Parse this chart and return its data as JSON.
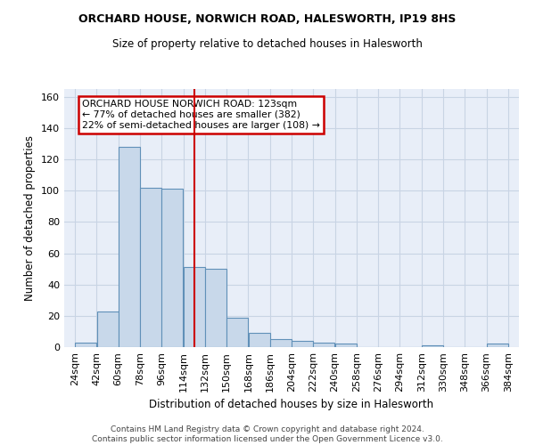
{
  "title1": "ORCHARD HOUSE, NORWICH ROAD, HALESWORTH, IP19 8HS",
  "title2": "Size of property relative to detached houses in Halesworth",
  "xlabel": "Distribution of detached houses by size in Halesworth",
  "ylabel": "Number of detached properties",
  "bin_edges": [
    24,
    42,
    60,
    78,
    96,
    114,
    132,
    150,
    168,
    186,
    204,
    222,
    240,
    258,
    276,
    294,
    312,
    330,
    348,
    366,
    384
  ],
  "bar_heights": [
    3,
    23,
    128,
    102,
    101,
    51,
    50,
    19,
    9,
    5,
    4,
    3,
    2,
    0,
    0,
    0,
    1,
    0,
    0,
    2
  ],
  "bar_color": "#c8d8ea",
  "bar_edge_color": "#6090b8",
  "grid_color": "#c8d4e4",
  "bg_color": "#e8eef8",
  "property_size": 123,
  "red_line_color": "#cc0000",
  "annotation_text": "ORCHARD HOUSE NORWICH ROAD: 123sqm\n← 77% of detached houses are smaller (382)\n22% of semi-detached houses are larger (108) →",
  "annotation_box_color": "#ffffff",
  "annotation_box_edge_color": "#cc0000",
  "ylim": [
    0,
    165
  ],
  "yticks": [
    0,
    20,
    40,
    60,
    80,
    100,
    120,
    140,
    160
  ],
  "footer_text": "Contains HM Land Registry data © Crown copyright and database right 2024.\nContains public sector information licensed under the Open Government Licence v3.0.",
  "tick_labels": [
    "24sqm",
    "42sqm",
    "60sqm",
    "78sqm",
    "96sqm",
    "114sqm",
    "132sqm",
    "150sqm",
    "168sqm",
    "186sqm",
    "204sqm",
    "222sqm",
    "240sqm",
    "258sqm",
    "276sqm",
    "294sqm",
    "312sqm",
    "330sqm",
    "348sqm",
    "366sqm",
    "384sqm"
  ]
}
